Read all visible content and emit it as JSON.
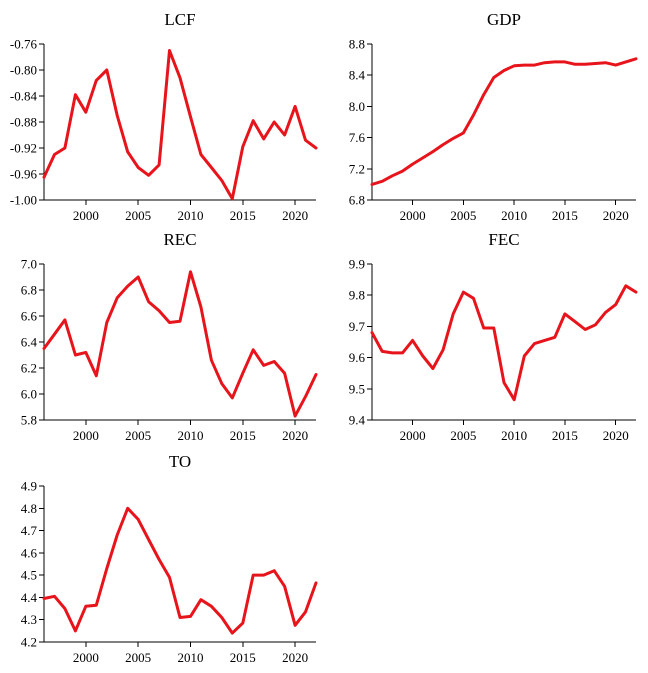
{
  "colors": {
    "line": "#e8141b",
    "axis": "#000000",
    "background": "#ffffff"
  },
  "chart_data": [
    {
      "type": "line",
      "title": "LCF",
      "xlabel": "",
      "ylabel": "",
      "x": [
        1996,
        1997,
        1998,
        1999,
        2000,
        2001,
        2002,
        2003,
        2004,
        2005,
        2006,
        2007,
        2008,
        2009,
        2010,
        2011,
        2012,
        2013,
        2014,
        2015,
        2016,
        2017,
        2018,
        2019,
        2020,
        2021,
        2022
      ],
      "values": [
        -0.965,
        -0.93,
        -0.92,
        -0.838,
        -0.865,
        -0.816,
        -0.8,
        -0.87,
        -0.926,
        -0.95,
        -0.962,
        -0.946,
        -0.77,
        -0.812,
        -0.872,
        -0.93,
        -0.95,
        -0.97,
        -0.998,
        -0.918,
        -0.878,
        -0.906,
        -0.88,
        -0.9,
        -0.856,
        -0.908,
        -0.92
      ],
      "xlim": [
        1996,
        2022
      ],
      "ylim": [
        -1.0,
        -0.76
      ],
      "xticks": [
        "2000",
        "2005",
        "2010",
        "2015",
        "2020"
      ],
      "yticks": [
        "-0.76",
        "-0.80",
        "-0.84",
        "-0.88",
        "-0.92",
        "-0.96",
        "-1.00"
      ]
    },
    {
      "type": "line",
      "title": "GDP",
      "xlabel": "",
      "ylabel": "",
      "x": [
        1996,
        1997,
        1998,
        1999,
        2000,
        2001,
        2002,
        2003,
        2004,
        2005,
        2006,
        2007,
        2008,
        2009,
        2010,
        2011,
        2012,
        2013,
        2014,
        2015,
        2016,
        2017,
        2018,
        2019,
        2020,
        2021,
        2022
      ],
      "values": [
        7.0,
        7.04,
        7.11,
        7.17,
        7.26,
        7.34,
        7.42,
        7.51,
        7.59,
        7.66,
        7.89,
        8.15,
        8.37,
        8.46,
        8.52,
        8.53,
        8.53,
        8.56,
        8.57,
        8.57,
        8.54,
        8.54,
        8.55,
        8.56,
        8.53,
        8.57,
        8.61
      ],
      "xlim": [
        1996,
        2022
      ],
      "ylim": [
        6.8,
        8.8
      ],
      "xticks": [
        "2000",
        "2005",
        "2010",
        "2015",
        "2020"
      ],
      "yticks": [
        "8.8",
        "8.4",
        "8.0",
        "7.6",
        "7.2",
        "6.8"
      ]
    },
    {
      "type": "line",
      "title": "REC",
      "xlabel": "",
      "ylabel": "",
      "x": [
        1996,
        1997,
        1998,
        1999,
        2000,
        2001,
        2002,
        2003,
        2004,
        2005,
        2006,
        2007,
        2008,
        2009,
        2010,
        2011,
        2012,
        2013,
        2014,
        2015,
        2016,
        2017,
        2018,
        2019,
        2020,
        2021,
        2022
      ],
      "values": [
        6.35,
        6.46,
        6.57,
        6.3,
        6.32,
        6.14,
        6.55,
        6.74,
        6.83,
        6.9,
        6.71,
        6.64,
        6.55,
        6.56,
        6.94,
        6.67,
        6.26,
        6.08,
        5.97,
        6.16,
        6.34,
        6.22,
        6.25,
        6.16,
        5.83,
        5.98,
        6.15
      ],
      "xlim": [
        1996,
        2022
      ],
      "ylim": [
        5.8,
        7.0
      ],
      "xticks": [
        "2000",
        "2005",
        "2010",
        "2015",
        "2020"
      ],
      "yticks": [
        "7.0",
        "6.8",
        "6.6",
        "6.4",
        "6.2",
        "6.0",
        "5.8"
      ]
    },
    {
      "type": "line",
      "title": "FEC",
      "xlabel": "",
      "ylabel": "",
      "x": [
        1996,
        1997,
        1998,
        1999,
        2000,
        2001,
        2002,
        2003,
        2004,
        2005,
        2006,
        2007,
        2008,
        2009,
        2010,
        2011,
        2012,
        2013,
        2014,
        2015,
        2016,
        2017,
        2018,
        2019,
        2020,
        2021,
        2022
      ],
      "values": [
        9.68,
        9.62,
        9.615,
        9.615,
        9.655,
        9.605,
        9.565,
        9.625,
        9.74,
        9.81,
        9.79,
        9.695,
        9.695,
        9.52,
        9.465,
        9.605,
        9.645,
        9.655,
        9.665,
        9.74,
        9.715,
        9.69,
        9.705,
        9.745,
        9.77,
        9.83,
        9.81
      ],
      "xlim": [
        1996,
        2022
      ],
      "ylim": [
        9.4,
        9.9
      ],
      "xticks": [
        "2000",
        "2005",
        "2010",
        "2015",
        "2020"
      ],
      "yticks": [
        "9.9",
        "9.8",
        "9.7",
        "9.6",
        "9.5",
        "9.4"
      ]
    },
    {
      "type": "line",
      "title": "TO",
      "xlabel": "",
      "ylabel": "",
      "x": [
        1996,
        1997,
        1998,
        1999,
        2000,
        2001,
        2002,
        2003,
        2004,
        2005,
        2006,
        2007,
        2008,
        2009,
        2010,
        2011,
        2012,
        2013,
        2014,
        2015,
        2016,
        2017,
        2018,
        2019,
        2020,
        2021,
        2022
      ],
      "values": [
        4.395,
        4.405,
        4.35,
        4.25,
        4.36,
        4.365,
        4.53,
        4.68,
        4.8,
        4.75,
        4.66,
        4.57,
        4.49,
        4.31,
        4.315,
        4.39,
        4.36,
        4.31,
        4.24,
        4.285,
        4.5,
        4.5,
        4.52,
        4.45,
        4.275,
        4.335,
        4.465
      ],
      "xlim": [
        1996,
        2022
      ],
      "ylim": [
        4.2,
        4.9
      ],
      "xticks": [
        "2000",
        "2005",
        "2010",
        "2015",
        "2020"
      ],
      "yticks": [
        "4.9",
        "4.8",
        "4.7",
        "4.6",
        "4.5",
        "4.4",
        "4.3",
        "4.2"
      ]
    }
  ]
}
